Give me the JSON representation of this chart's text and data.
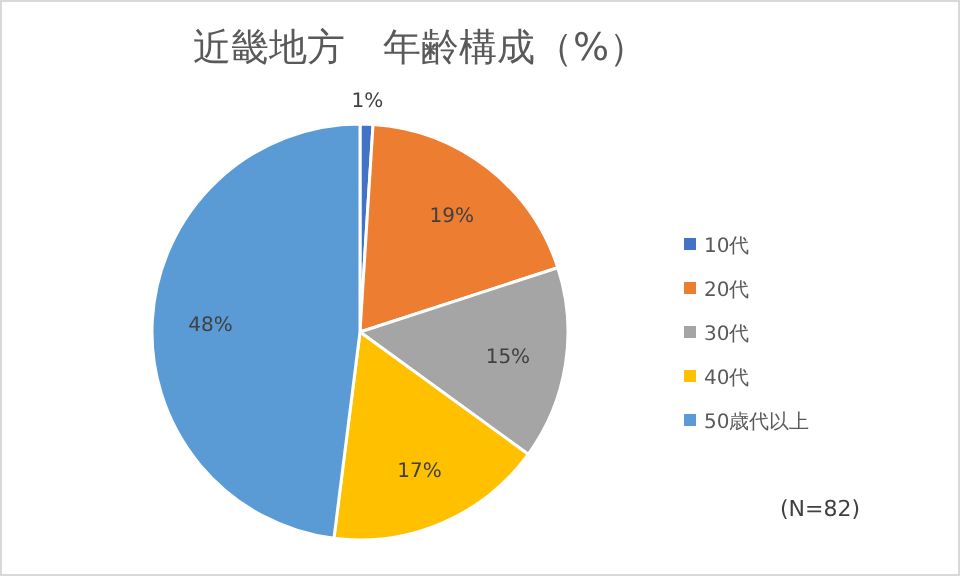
{
  "chart_data": {
    "type": "pie",
    "title": "近畿地方　年齢構成（%）",
    "categories": [
      "10代",
      "20代",
      "30代",
      "40代",
      "50歳代以上"
    ],
    "values": [
      1,
      19,
      15,
      17,
      48
    ],
    "value_labels": [
      "1%",
      "19%",
      "15%",
      "17%",
      "48%"
    ],
    "colors": [
      "#4472c4",
      "#ed7d31",
      "#a5a5a5",
      "#ffc000",
      "#5b9bd5"
    ],
    "legend": "right",
    "annotations": [
      "(N=82)"
    ]
  }
}
